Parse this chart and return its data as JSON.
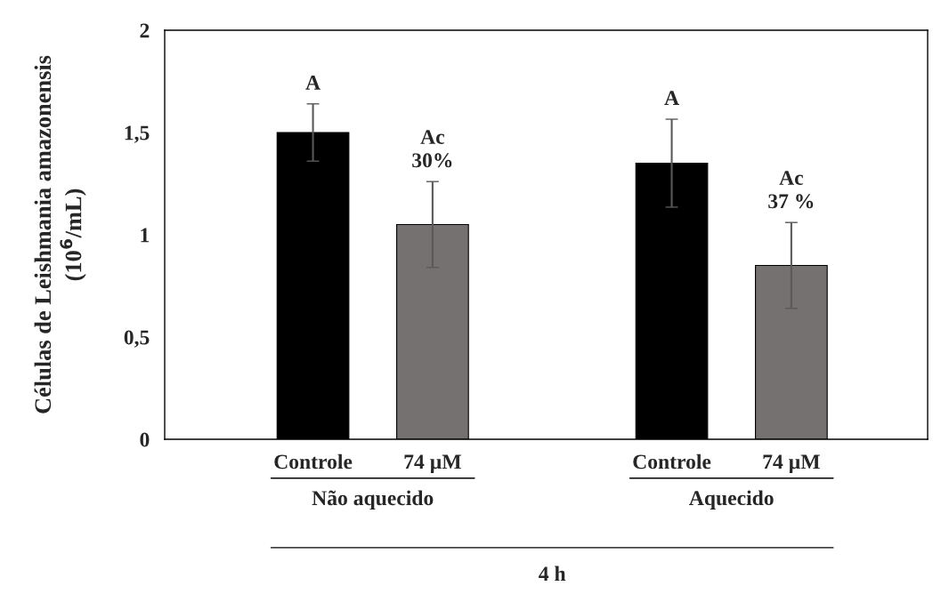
{
  "chart_data": {
    "type": "bar",
    "categories": [
      "Controle",
      "74 µM",
      null,
      "Controle",
      "74 µM"
    ],
    "series": [
      {
        "colors": [
          "#000000",
          "#767171",
          null,
          "#000000",
          "#767171"
        ],
        "values": [
          1.5,
          1.05,
          null,
          1.35,
          0.85
        ],
        "errors": [
          0.14,
          0.21,
          null,
          0.215,
          0.21
        ],
        "value_labels": [
          "A",
          "Ac\n30%",
          null,
          "A",
          "Ac\n37 %"
        ]
      }
    ],
    "ylabel": "Células de Leishmania amazonensis\n(10$^{6}$/mL)",
    "ylim": [
      0,
      2
    ],
    "yticks": [
      0,
      {
        "value": 0.5,
        "label": "0,5"
      },
      1,
      {
        "value": 1.5,
        "label": "1,5"
      },
      2
    ],
    "grid": false,
    "annotations": [
      "Não aquecido",
      "Aquecido",
      "4 h"
    ]
  }
}
